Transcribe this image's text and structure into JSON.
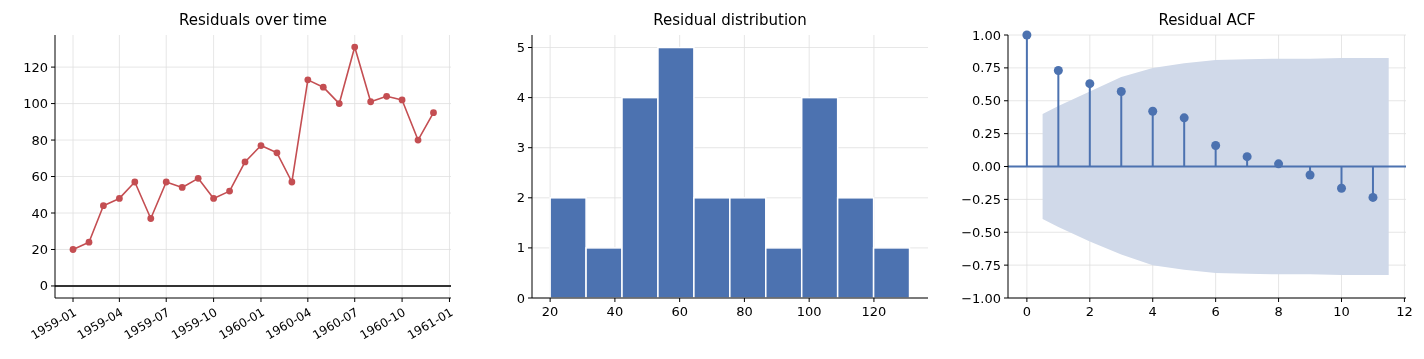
{
  "chart_data": [
    {
      "type": "line",
      "title": "Residuals over time",
      "x": [
        "1959-01",
        "1959-02",
        "1959-03",
        "1959-04",
        "1959-05",
        "1959-06",
        "1959-07",
        "1959-08",
        "1959-09",
        "1959-10",
        "1959-11",
        "1959-12",
        "1960-01",
        "1960-02",
        "1960-03",
        "1960-04",
        "1960-05",
        "1960-06",
        "1960-07",
        "1960-08",
        "1960-09",
        "1960-10",
        "1960-11",
        "1960-12"
      ],
      "series": [
        {
          "color": "#c44e52",
          "values": [
            20,
            24,
            44,
            48,
            57,
            37,
            57,
            54,
            59,
            48,
            52,
            68,
            77,
            73,
            57,
            113,
            109,
            100,
            131,
            101,
            104,
            102,
            80,
            95
          ]
        }
      ],
      "xlim": [
        "1958-11-27",
        "1961-01-04"
      ],
      "xticks": [
        "1959-01",
        "1959-04",
        "1959-07",
        "1959-10",
        "1960-01",
        "1960-04",
        "1960-07",
        "1960-10",
        "1961-01"
      ],
      "ylim": [
        -6.6,
        137.6
      ],
      "yticks": [
        0,
        20,
        40,
        60,
        80,
        100,
        120
      ],
      "grid": true,
      "marker": "circle",
      "line_style": "solid",
      "ref_lines": [
        {
          "axis": "y",
          "value": 0,
          "color": "#333333"
        }
      ]
    },
    {
      "type": "histogram",
      "title": "Residual distribution",
      "bins": [
        20,
        31.1,
        42.2,
        53.3,
        64.4,
        75.5,
        86.6,
        97.7,
        108.8,
        119.9,
        131
      ],
      "values": [
        2,
        1,
        4,
        5,
        2,
        2,
        1,
        4,
        2,
        1
      ],
      "color": "#4c72b0",
      "xlim": [
        14.4,
        136.7
      ],
      "xticks": [
        20,
        40,
        60,
        80,
        100,
        120
      ],
      "ylim": [
        0,
        5.25
      ],
      "yticks": [
        0,
        1,
        2,
        3,
        4,
        5
      ],
      "grid": true
    },
    {
      "type": "lollipop",
      "title": "Residual ACF",
      "x": [
        0,
        1,
        2,
        3,
        4,
        5,
        6,
        7,
        8,
        9,
        10,
        11
      ],
      "series": [
        {
          "color": "#4c72b0",
          "values": [
            1,
            0.73,
            0.63,
            0.57,
            0.42,
            0.37,
            0.16,
            0.075,
            0.02,
            -0.065,
            -0.165,
            -0.235
          ]
        },
        {
          "type": "area",
          "color": "#d0d9e9",
          "values": [
            null,
            null,
            null,
            null,
            null,
            null,
            null,
            null,
            null,
            null,
            null,
            null,
            null
          ],
          "x": [
            0.5,
            1,
            2,
            3,
            4,
            5,
            6,
            7,
            8,
            9,
            10,
            11,
            11.5
          ],
          "lower": [
            -0.4,
            -0.46,
            -0.57,
            -0.67,
            -0.75,
            -0.785,
            -0.81,
            -0.815,
            -0.82,
            -0.82,
            -0.825,
            -0.825,
            -0.825
          ],
          "upper": [
            0.4,
            0.46,
            0.57,
            0.68,
            0.75,
            0.785,
            0.81,
            0.815,
            0.82,
            0.82,
            0.825,
            0.825,
            0.825
          ]
        }
      ],
      "xlim": [
        -0.6,
        12.05
      ],
      "xticks": [
        0,
        2,
        4,
        6,
        8,
        10,
        12
      ],
      "ylim": [
        -1,
        1
      ],
      "yticks": [
        {
          "value": -1,
          "label": "−1.00"
        },
        {
          "value": -0.75,
          "label": "−0.75"
        },
        {
          "value": -0.5,
          "label": "−0.50"
        },
        {
          "value": -0.25,
          "label": "−0.25"
        },
        {
          "value": 0,
          "label": "0.00"
        },
        {
          "value": 0.25,
          "label": "0.25"
        },
        {
          "value": 0.5,
          "label": "0.50"
        },
        {
          "value": 0.75,
          "label": "0.75"
        },
        {
          "value": 1,
          "label": "1.00"
        }
      ],
      "grid": true,
      "marker": "circle",
      "ref_lines": [
        {
          "axis": "y",
          "value": 0,
          "color": "#4c72b0"
        }
      ]
    }
  ]
}
